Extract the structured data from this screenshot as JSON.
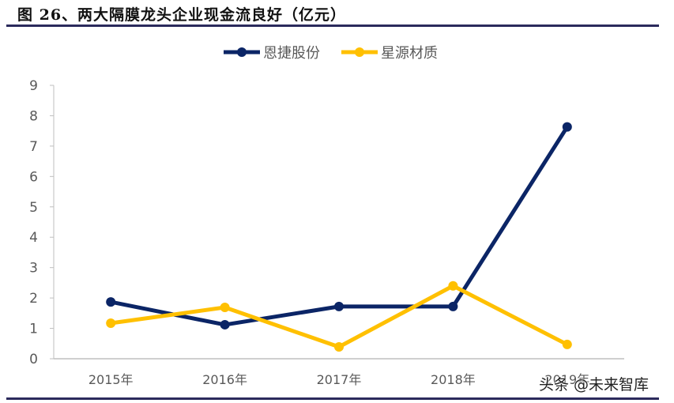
{
  "header": {
    "title": "图 26、两大隔膜龙头企业现金流良好（亿元）"
  },
  "watermark": "头条 @未来智库",
  "colors": {
    "series1": "#0b2566",
    "series2": "#ffc000",
    "axis": "#bfbfbf",
    "text": "#595959",
    "rule": "#2b2a5c"
  },
  "chart_data": {
    "type": "line",
    "title": "图 26、两大隔膜龙头企业现金流良好（亿元）",
    "xlabel": "",
    "ylabel": "",
    "categories": [
      "2015年",
      "2016年",
      "2017年",
      "2018年",
      "2019年"
    ],
    "series": [
      {
        "name": "恩捷股份",
        "color": "#0b2566",
        "values": [
          1.87,
          1.12,
          1.72,
          1.72,
          7.63
        ]
      },
      {
        "name": "星源材质",
        "color": "#ffc000",
        "values": [
          1.17,
          1.69,
          0.39,
          2.4,
          0.47
        ]
      }
    ],
    "ylim": [
      0,
      9
    ],
    "yticks": [
      0,
      1,
      2,
      3,
      4,
      5,
      6,
      7,
      8,
      9
    ],
    "grid": false,
    "legend_position": "top"
  }
}
